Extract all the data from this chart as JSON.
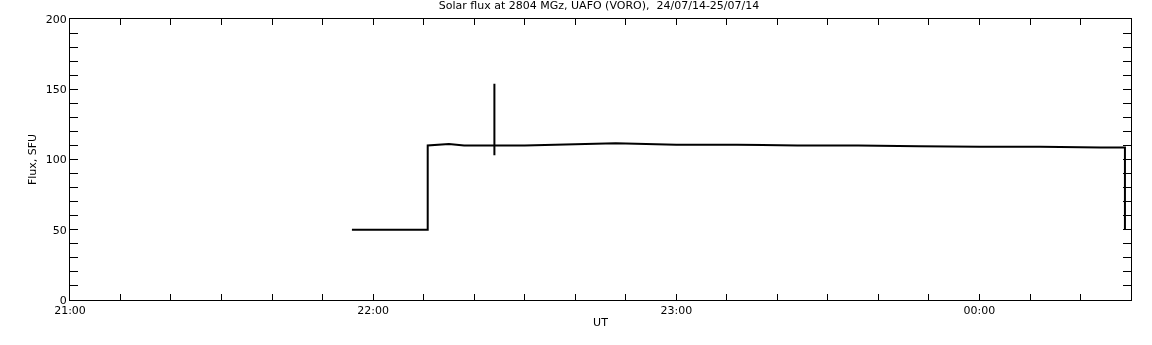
{
  "chart_data": {
    "type": "line",
    "title": "Solar flux at 2804 MGz, UAFO (VORO),  24/07/14-25/07/14",
    "xlabel": "UT",
    "ylabel": "Flux, SFU",
    "x": [
      21.93,
      22.18,
      22.18,
      22.25,
      22.3,
      22.4,
      22.4,
      22.4,
      22.4,
      22.5,
      22.6,
      22.7,
      22.8,
      22.9,
      23.0,
      23.2,
      23.4,
      23.6,
      23.8,
      24.0,
      24.2,
      24.4,
      24.48,
      24.48
    ],
    "series": [
      {
        "color": "#000000",
        "values": [
          50,
          50,
          110,
          111,
          110,
          110,
          154,
          103,
          110,
          110,
          110.5,
          111,
          111.5,
          111,
          110.5,
          110.5,
          110,
          110,
          109.5,
          109,
          109,
          108.5,
          108.5,
          50
        ]
      }
    ],
    "xlim": [
      21,
      24.5
    ],
    "ylim": [
      0,
      200
    ],
    "xticks": [
      {
        "value": 21,
        "label": "21:00"
      },
      {
        "value": 21.167,
        "label": null
      },
      {
        "value": 21.333,
        "label": null
      },
      {
        "value": 21.5,
        "label": null
      },
      {
        "value": 21.667,
        "label": null
      },
      {
        "value": 21.833,
        "label": null
      },
      {
        "value": 22,
        "label": "22:00"
      },
      {
        "value": 22.167,
        "label": null
      },
      {
        "value": 22.333,
        "label": null
      },
      {
        "value": 22.5,
        "label": null
      },
      {
        "value": 22.667,
        "label": null
      },
      {
        "value": 22.833,
        "label": null
      },
      {
        "value": 23,
        "label": "23:00"
      },
      {
        "value": 23.167,
        "label": null
      },
      {
        "value": 23.333,
        "label": null
      },
      {
        "value": 23.5,
        "label": null
      },
      {
        "value": 23.667,
        "label": null
      },
      {
        "value": 23.833,
        "label": null
      },
      {
        "value": 24,
        "label": "00:00"
      },
      {
        "value": 24.167,
        "label": null
      },
      {
        "value": 24.333,
        "label": null
      }
    ],
    "yticks": [
      0,
      {
        "value": 10,
        "label": null
      },
      {
        "value": 20,
        "label": null
      },
      {
        "value": 30,
        "label": null
      },
      {
        "value": 40,
        "label": null
      },
      50,
      {
        "value": 60,
        "label": null
      },
      {
        "value": 70,
        "label": null
      },
      {
        "value": 80,
        "label": null
      },
      {
        "value": 90,
        "label": null
      },
      100,
      {
        "value": 110,
        "label": null
      },
      {
        "value": 120,
        "label": null
      },
      {
        "value": 130,
        "label": null
      },
      {
        "value": 140,
        "label": null
      },
      150,
      {
        "value": 160,
        "label": null
      },
      {
        "value": 170,
        "label": null
      },
      {
        "value": 180,
        "label": null
      },
      {
        "value": 190,
        "label": null
      },
      200
    ],
    "marker": "none",
    "line_style": "solid"
  }
}
